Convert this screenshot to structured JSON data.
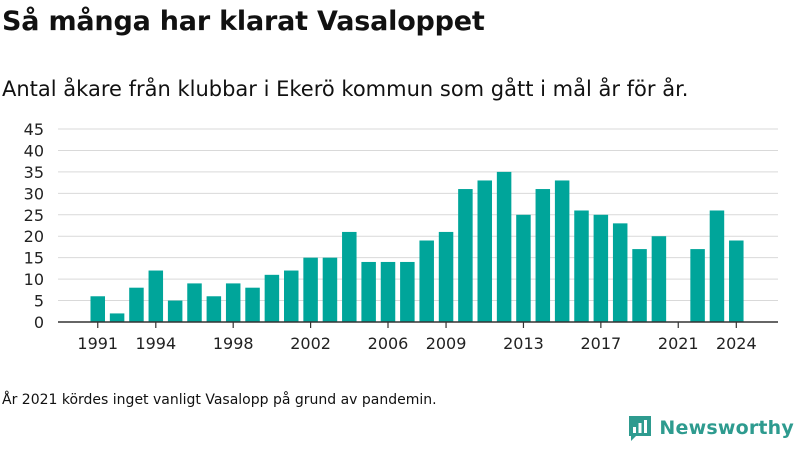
{
  "title": "Så många har klarat Vasaloppet",
  "subtitle": "Antal åkare från klubbar i Ekerö kommun som gått i mål år för år.",
  "footnote": "År 2021 kördes inget vanligt Vasalopp på grund av pandemin.",
  "brand": {
    "name": "Newsworthy",
    "icon": "newsworthy-logo-icon"
  },
  "colors": {
    "bar": "#00a59a",
    "grid": "#d9d9d9",
    "axis": "#333333",
    "brand": "#2e9b8f"
  },
  "chart_data": {
    "type": "bar",
    "title": "",
    "xlabel": "",
    "ylabel": "",
    "ylim": [
      0,
      45
    ],
    "grid": true,
    "y_ticks": [
      0,
      5,
      10,
      15,
      20,
      25,
      30,
      35,
      40,
      45
    ],
    "x_tick_labels": [
      "1991",
      "1994",
      "1998",
      "2002",
      "2006",
      "2009",
      "2013",
      "2017",
      "2021",
      "2024"
    ],
    "categories": [
      "1991",
      "1992",
      "1993",
      "1994",
      "1995",
      "1996",
      "1997",
      "1998",
      "1999",
      "2000",
      "2001",
      "2002",
      "2003",
      "2004",
      "2005",
      "2006",
      "2007",
      "2008",
      "2009",
      "2010",
      "2011",
      "2012",
      "2013",
      "2014",
      "2015",
      "2016",
      "2017",
      "2018",
      "2019",
      "2020",
      "2021",
      "2022",
      "2023",
      "2024"
    ],
    "values": [
      6,
      2,
      8,
      12,
      5,
      9,
      6,
      9,
      8,
      11,
      12,
      15,
      15,
      21,
      14,
      14,
      14,
      19,
      21,
      31,
      33,
      35,
      25,
      31,
      33,
      26,
      25,
      23,
      17,
      20,
      null,
      17,
      26,
      19
    ]
  }
}
